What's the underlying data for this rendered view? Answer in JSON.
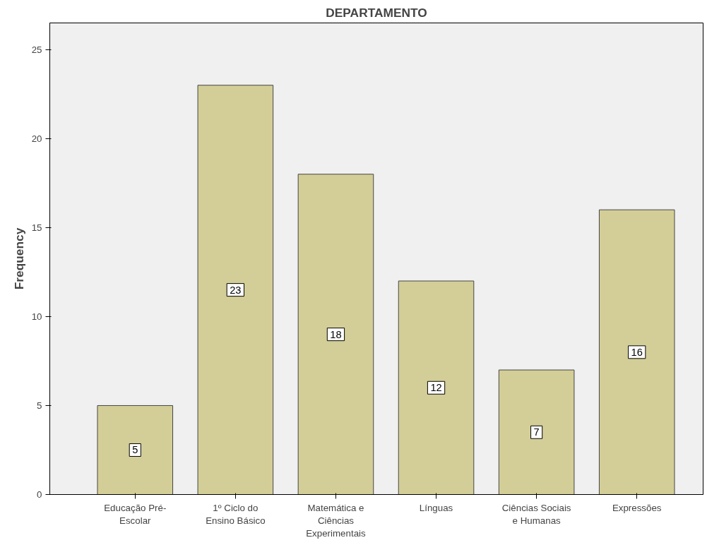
{
  "chart_data": {
    "type": "bar",
    "title": "DEPARTAMENTO",
    "ylabel": "Frequency",
    "categories": [
      "Educação Pré-\nEscolar",
      "1º Ciclo do\nEnsino Básico",
      "Matemática e\nCiências\nExperimentais",
      "Línguas",
      "Ciências Sociais\ne Humanas",
      "Expressões"
    ],
    "values": [
      5,
      23,
      18,
      12,
      7,
      16
    ],
    "color": "#d3ce97",
    "ylim": [
      0,
      26.5
    ],
    "yticks": [
      0,
      5,
      10,
      15,
      20,
      25
    ],
    "grid": false,
    "data_labels": true
  }
}
